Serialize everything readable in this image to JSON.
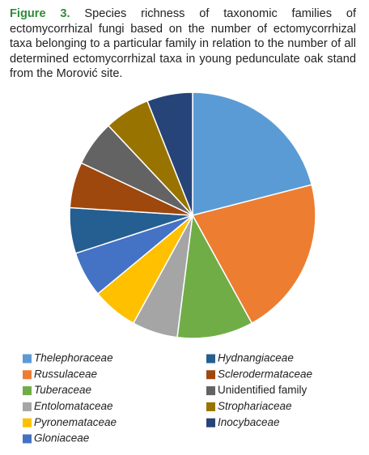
{
  "chart_data": {
    "type": "pie",
    "figure_label": "Figure 3.",
    "caption": "Species richness of taxonomic families of ectomycorrhizal fungi based on the number of ectomycorrhizal taxa belonging to a particular family in relation to the number of all determined ectomycorrhizal taxa in young pedunculate oak stand from the Morović site.",
    "categories": [
      "Thelephoraceae",
      "Russulaceae",
      "Tuberaceae",
      "Entolomataceae",
      "Pyronemataceae",
      "Gloniaceae",
      "Hydnangiaceae",
      "Sclerodermataceae",
      "Unidentified family",
      "Strophariaceae",
      "Inocybaceae"
    ],
    "values": [
      21,
      21,
      10,
      6,
      6,
      6,
      6,
      6,
      6,
      6,
      6
    ],
    "colors": [
      "#5b9bd5",
      "#ed7d31",
      "#70ad47",
      "#a5a5a5",
      "#ffc000",
      "#4472c4",
      "#255e91",
      "#9e480e",
      "#636363",
      "#997300",
      "#264478"
    ],
    "legend_italic": [
      true,
      true,
      true,
      true,
      true,
      true,
      true,
      true,
      false,
      true,
      true
    ]
  }
}
